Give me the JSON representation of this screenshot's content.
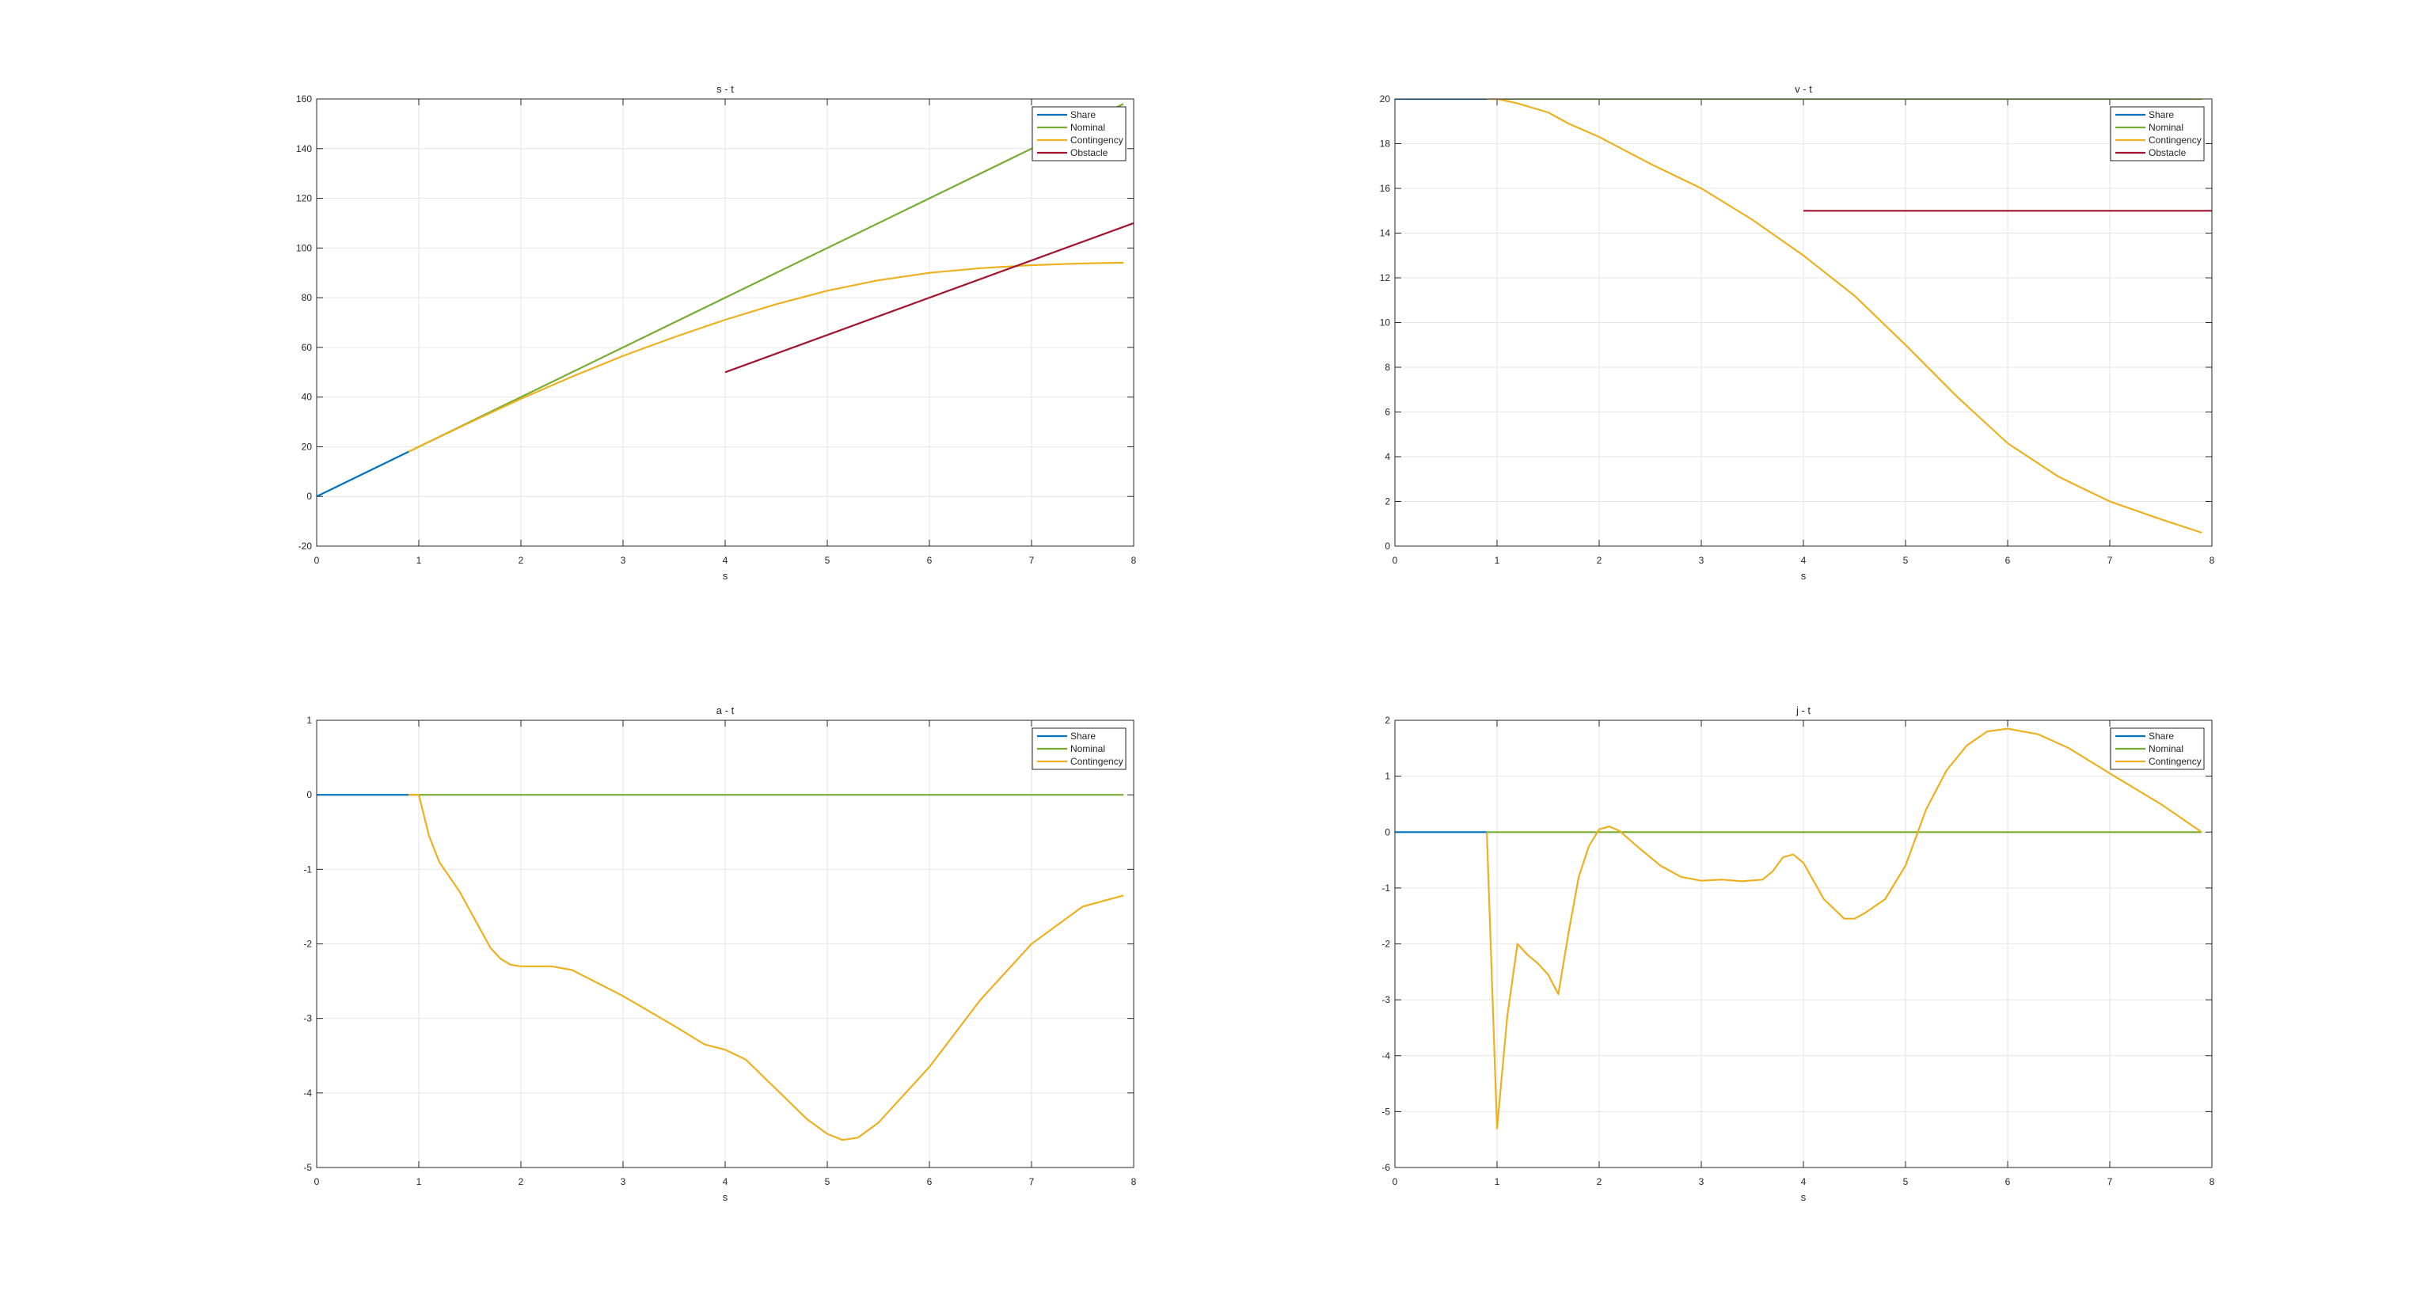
{
  "figure": {
    "background": "#ffffff",
    "grid_color": "#e6e6e6",
    "axis_color": "#262626"
  },
  "series_styles": {
    "Share": "#0072BD",
    "Nominal": "#77AC30",
    "Contingency": "#EDB120",
    "Obstacle": "#A2142F"
  },
  "chart_data": [
    {
      "type": "line",
      "title": "s - t",
      "xlabel": "s",
      "ylabel": "",
      "xlim": [
        0,
        8
      ],
      "ylim": [
        -20,
        160
      ],
      "xticks": [
        0,
        1,
        2,
        3,
        4,
        5,
        6,
        7,
        8
      ],
      "yticks": [
        -20,
        0,
        20,
        40,
        60,
        80,
        100,
        120,
        140,
        160
      ],
      "grid": true,
      "legend_position": "top-right",
      "legend": [
        "Share",
        "Nominal",
        "Contingency",
        "Obstacle"
      ],
      "series": [
        {
          "name": "Share",
          "x": [
            0,
            0.9
          ],
          "y": [
            0,
            18
          ]
        },
        {
          "name": "Nominal",
          "x": [
            0.9,
            7.9
          ],
          "y": [
            18,
            158
          ]
        },
        {
          "name": "Contingency",
          "x": [
            0.9,
            1.0,
            1.5,
            2.0,
            2.5,
            3.0,
            3.5,
            4.0,
            4.5,
            5.0,
            5.5,
            6.0,
            6.5,
            7.0,
            7.5,
            7.9
          ],
          "y": [
            18,
            20,
            29.8,
            39.3,
            48.2,
            56.6,
            64.1,
            71.1,
            77.4,
            82.8,
            87.0,
            90.0,
            91.9,
            93.1,
            93.8,
            94.1
          ]
        },
        {
          "name": "Obstacle",
          "x": [
            4,
            8
          ],
          "y": [
            50,
            110
          ]
        }
      ]
    },
    {
      "type": "line",
      "title": "v - t",
      "xlabel": "s",
      "ylabel": "",
      "xlim": [
        0,
        8
      ],
      "ylim": [
        0,
        20
      ],
      "xticks": [
        0,
        1,
        2,
        3,
        4,
        5,
        6,
        7,
        8
      ],
      "yticks": [
        0,
        2,
        4,
        6,
        8,
        10,
        12,
        14,
        16,
        18,
        20
      ],
      "grid": true,
      "legend_position": "top-right",
      "legend": [
        "Share",
        "Nominal",
        "Contingency",
        "Obstacle"
      ],
      "series": [
        {
          "name": "Share",
          "x": [
            0,
            0.9
          ],
          "y": [
            20,
            20
          ]
        },
        {
          "name": "Nominal",
          "x": [
            0.9,
            7.9
          ],
          "y": [
            20,
            20
          ]
        },
        {
          "name": "Contingency",
          "x": [
            0.9,
            1.0,
            1.2,
            1.5,
            1.7,
            2.0,
            2.5,
            3.0,
            3.5,
            4.0,
            4.5,
            5.0,
            5.5,
            6.0,
            6.5,
            7.0,
            7.5,
            7.9
          ],
          "y": [
            20,
            20,
            19.8,
            19.4,
            18.9,
            18.3,
            17.1,
            16.0,
            14.6,
            13.0,
            11.2,
            9.0,
            6.7,
            4.6,
            3.1,
            2.0,
            1.2,
            0.6
          ]
        },
        {
          "name": "Obstacle",
          "x": [
            4,
            8
          ],
          "y": [
            15,
            15
          ]
        }
      ]
    },
    {
      "type": "line",
      "title": "a - t",
      "xlabel": "s",
      "ylabel": "",
      "xlim": [
        0,
        8
      ],
      "ylim": [
        -5,
        1
      ],
      "xticks": [
        0,
        1,
        2,
        3,
        4,
        5,
        6,
        7,
        8
      ],
      "yticks": [
        -5,
        -4,
        -3,
        -2,
        -1,
        0,
        1
      ],
      "grid": true,
      "legend_position": "top-right",
      "legend": [
        "Share",
        "Nominal",
        "Contingency"
      ],
      "series": [
        {
          "name": "Share",
          "x": [
            0,
            0.9
          ],
          "y": [
            0,
            0
          ]
        },
        {
          "name": "Nominal",
          "x": [
            0.9,
            7.9
          ],
          "y": [
            0,
            0
          ]
        },
        {
          "name": "Contingency",
          "x": [
            0.9,
            1.0,
            1.1,
            1.2,
            1.4,
            1.6,
            1.7,
            1.8,
            1.9,
            2.0,
            2.3,
            2.5,
            3.0,
            3.5,
            3.8,
            4.0,
            4.2,
            4.5,
            4.8,
            5.0,
            5.15,
            5.3,
            5.5,
            6.0,
            6.5,
            7.0,
            7.5,
            7.9
          ],
          "y": [
            0,
            0,
            -0.55,
            -0.9,
            -1.3,
            -1.8,
            -2.05,
            -2.2,
            -2.28,
            -2.3,
            -2.3,
            -2.35,
            -2.7,
            -3.1,
            -3.35,
            -3.42,
            -3.55,
            -3.95,
            -4.35,
            -4.55,
            -4.63,
            -4.6,
            -4.4,
            -3.65,
            -2.75,
            -2.0,
            -1.5,
            -1.35
          ]
        }
      ]
    },
    {
      "type": "line",
      "title": "j - t",
      "xlabel": "s",
      "ylabel": "",
      "xlim": [
        0,
        8
      ],
      "ylim": [
        -6,
        2
      ],
      "xticks": [
        0,
        1,
        2,
        3,
        4,
        5,
        6,
        7,
        8
      ],
      "yticks": [
        -6,
        -5,
        -4,
        -3,
        -2,
        -1,
        0,
        1,
        2
      ],
      "grid": true,
      "legend_position": "top-right",
      "legend": [
        "Share",
        "Nominal",
        "Contingency"
      ],
      "series": [
        {
          "name": "Share",
          "x": [
            0,
            0.9
          ],
          "y": [
            0,
            0
          ]
        },
        {
          "name": "Nominal",
          "x": [
            0.9,
            7.9
          ],
          "y": [
            0,
            0
          ]
        },
        {
          "name": "Contingency",
          "x": [
            0.9,
            1.0,
            1.1,
            1.2,
            1.3,
            1.4,
            1.5,
            1.6,
            1.7,
            1.8,
            1.9,
            2.0,
            2.1,
            2.2,
            2.4,
            2.6,
            2.8,
            3.0,
            3.2,
            3.4,
            3.6,
            3.7,
            3.8,
            3.9,
            4.0,
            4.2,
            4.4,
            4.5,
            4.6,
            4.8,
            5.0,
            5.2,
            5.4,
            5.6,
            5.8,
            6.0,
            6.3,
            6.6,
            7.0,
            7.5,
            7.9
          ],
          "y": [
            0,
            -5.3,
            -3.3,
            -2.0,
            -2.2,
            -2.35,
            -2.55,
            -2.9,
            -1.8,
            -0.8,
            -0.25,
            0.05,
            0.1,
            0.02,
            -0.3,
            -0.6,
            -0.8,
            -0.87,
            -0.85,
            -0.88,
            -0.85,
            -0.7,
            -0.45,
            -0.4,
            -0.55,
            -1.2,
            -1.55,
            -1.55,
            -1.45,
            -1.2,
            -0.6,
            0.4,
            1.1,
            1.55,
            1.8,
            1.85,
            1.75,
            1.5,
            1.05,
            0.5,
            0.0
          ]
        }
      ]
    }
  ]
}
